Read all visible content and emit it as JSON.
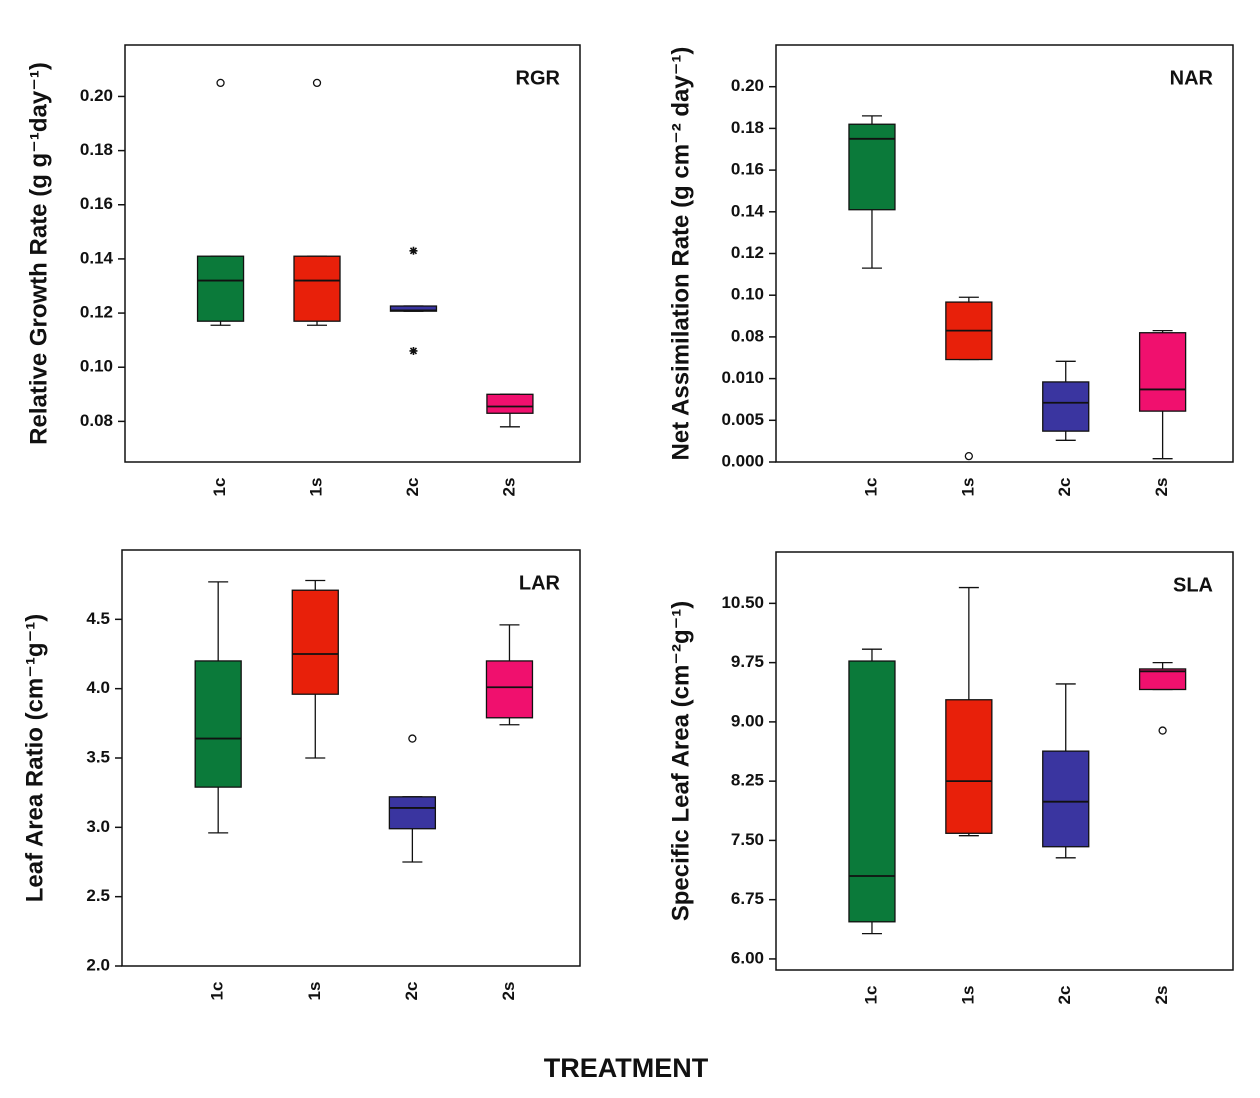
{
  "chart_data": [
    {
      "type": "box",
      "label": "RGR",
      "ylabel": "Relative Growth Rate (g g⁻¹day⁻¹)",
      "categories": [
        "1c",
        "1s",
        "2c",
        "2s"
      ],
      "colors": [
        "#0b7a3a",
        "#e8200a",
        "#3a35a0",
        "#f0106e"
      ],
      "boxes": [
        {
          "whislo": 0.1155,
          "q1": 0.117,
          "med": 0.132,
          "q3": 0.141,
          "whishi": 0.141,
          "fliers": [
            0.205
          ],
          "flier_marker": "o"
        },
        {
          "whislo": 0.1155,
          "q1": 0.117,
          "med": 0.132,
          "q3": 0.141,
          "whishi": 0.141,
          "fliers": [
            0.205
          ],
          "flier_marker": "o"
        },
        {
          "whislo": 0.1207,
          "q1": 0.1207,
          "med": 0.121,
          "q3": 0.1226,
          "whishi": 0.1226,
          "fliers": [
            0.143,
            0.106
          ],
          "flier_marker": "*"
        },
        {
          "whislo": 0.078,
          "q1": 0.083,
          "med": 0.0855,
          "q3": 0.09,
          "whishi": 0.09,
          "fliers": [],
          "flier_marker": "o"
        }
      ],
      "ylim": [
        0.065,
        0.219
      ],
      "yticks": [
        0.08,
        {
          "value": 0.1,
          "label": "0.10"
        },
        0.12,
        0.14,
        0.16,
        0.18,
        {
          "value": 0.2,
          "label": "0.20"
        }
      ]
    },
    {
      "type": "box",
      "label": "NAR",
      "ylabel": "Net Assimilation Rate (g cm⁻² day⁻¹)",
      "categories": [
        "1c",
        "1s",
        "2c",
        "2s"
      ],
      "colors": [
        "#0b7a3a",
        "#e8200a",
        "#3a35a0",
        "#f0106e"
      ],
      "boxes": [
        {
          "whislo": 0.113,
          "q1": 0.141,
          "med": 0.175,
          "q3": 0.182,
          "whishi": 0.186,
          "fliers": [],
          "flier_marker": "o"
        },
        {
          "whislo": 0.042,
          "q1": 0.042,
          "med": 0.083,
          "q3": 0.0967,
          "whishi": 0.099,
          "fliers": [
            0.0007
          ],
          "flier_marker": "o"
        },
        {
          "whislo": 0.0026,
          "q1": 0.0037,
          "med": 0.0071,
          "q3": 0.0096,
          "whishi": 0.039,
          "fliers": [],
          "flier_marker": "o"
        },
        {
          "whislo": 0.0004,
          "q1": 0.0061,
          "med": 0.0087,
          "q3": 0.082,
          "whishi": 0.083,
          "fliers": [],
          "flier_marker": "o"
        }
      ],
      "ylim": [
        0,
        0.22
      ],
      "yticks": [
        {
          "value": 0,
          "label": "0.000"
        },
        0.005,
        {
          "value": 0.01,
          "label": "0.010"
        },
        0.08,
        {
          "value": 0.1,
          "label": "0.10"
        },
        0.12,
        0.14,
        0.16,
        0.18,
        {
          "value": 0.2,
          "label": "0.20"
        }
      ]
    },
    {
      "type": "box",
      "label": "LAR",
      "ylabel": "Leaf Area Ratio (cm⁻¹g⁻¹)",
      "categories": [
        "1c",
        "1s",
        "2c",
        "2s"
      ],
      "colors": [
        "#0b7a3a",
        "#e8200a",
        "#3a35a0",
        "#f0106e"
      ],
      "boxes": [
        {
          "whislo": 2.96,
          "q1": 3.29,
          "med": 3.64,
          "q3": 4.2,
          "whishi": 4.77,
          "fliers": [],
          "flier_marker": "o"
        },
        {
          "whislo": 3.5,
          "q1": 3.96,
          "med": 4.25,
          "q3": 4.71,
          "whishi": 4.78,
          "fliers": [],
          "flier_marker": "o"
        },
        {
          "whislo": 2.75,
          "q1": 2.99,
          "med": 3.14,
          "q3": 3.22,
          "whishi": 3.22,
          "fliers": [
            3.64
          ],
          "flier_marker": "o"
        },
        {
          "whislo": 3.74,
          "q1": 3.79,
          "med": 4.01,
          "q3": 4.2,
          "whishi": 4.46,
          "fliers": [],
          "flier_marker": "o"
        }
      ],
      "ylim": [
        2,
        5
      ],
      "yticks": [
        {
          "value": 2,
          "label": "2.0"
        },
        2.5,
        {
          "value": 3,
          "label": "3.0"
        },
        3.5,
        {
          "value": 4,
          "label": "4.0"
        },
        4.5
      ]
    },
    {
      "type": "box",
      "label": "SLA",
      "ylabel": "Specific Leaf Area (cm⁻²g⁻¹)",
      "categories": [
        "1c",
        "1s",
        "2c",
        "2s"
      ],
      "colors": [
        "#0b7a3a",
        "#e8200a",
        "#3a35a0",
        "#f0106e"
      ],
      "boxes": [
        {
          "whislo": 6.32,
          "q1": 6.47,
          "med": 7.05,
          "q3": 9.77,
          "whishi": 9.92,
          "fliers": [],
          "flier_marker": "o"
        },
        {
          "whislo": 7.56,
          "q1": 7.59,
          "med": 8.25,
          "q3": 9.28,
          "whishi": 10.7,
          "fliers": [],
          "flier_marker": "o"
        },
        {
          "whislo": 7.28,
          "q1": 7.42,
          "med": 7.99,
          "q3": 8.63,
          "whishi": 9.48,
          "fliers": [],
          "flier_marker": "o"
        },
        {
          "whislo": 9.41,
          "q1": 9.41,
          "med": 9.64,
          "q3": 9.67,
          "whishi": 9.75,
          "fliers": [
            8.89
          ],
          "flier_marker": "o"
        }
      ],
      "ylim": [
        5.86,
        11.15
      ],
      "yticks": [
        {
          "value": 6,
          "label": "6.00"
        },
        6.75,
        {
          "value": 7.5,
          "label": "7.50"
        },
        8.25,
        {
          "value": 9,
          "label": "9.00"
        },
        9.75,
        {
          "value": 10.5,
          "label": "10.50"
        }
      ]
    }
  ],
  "xlabel": "TREATMENT"
}
